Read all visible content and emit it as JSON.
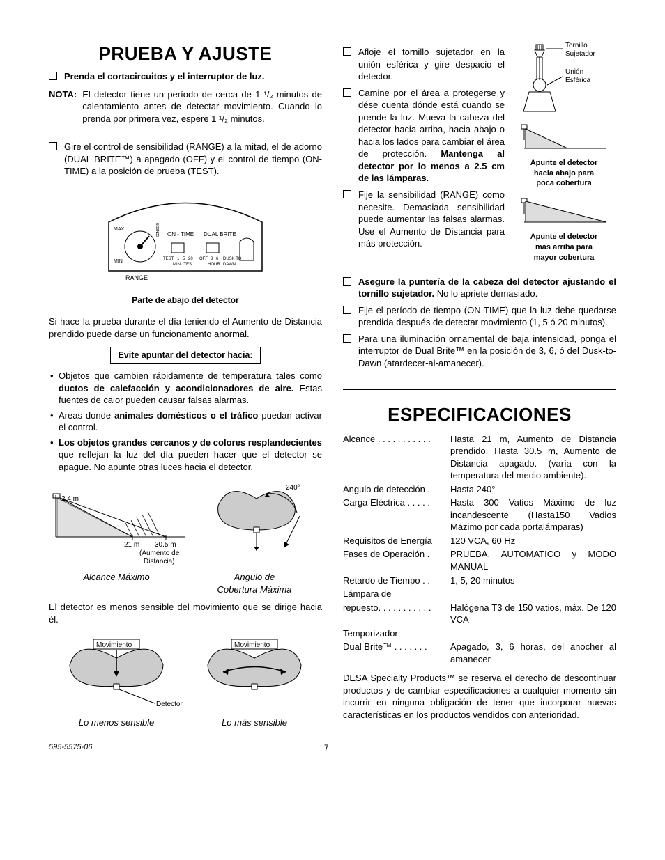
{
  "left": {
    "title": "PRUEBA Y AJUSTE",
    "step1": "Prenda el cortacircuitos y el interruptor de luz.",
    "nota_label": "NOTA:",
    "nota_text": "El detector tiene un período de cerca de 1 ¹/₂ minutos de calentamiento antes de detectar movimiento. Cuando lo prenda por primera vez, espere 1 ¹/₂ minutos.",
    "step2": "Gire el control de sensibilidad (RANGE) a la mitad, el de adorno (DUAL BRITE™) a apagado (OFF) y el control de tiempo (ON-TIME) a la posición de prueba (TEST).",
    "fig1": {
      "max": "MAX",
      "min": "MIN",
      "range": "RANGE",
      "ontime": "ON - TIME",
      "dualbrite": "DUAL BRITE",
      "test": "TEST",
      "min_m": "MINUTES",
      "one": "1",
      "five": "5",
      "twenty": "20",
      "off": "OFF",
      "three": "3",
      "six": "6",
      "hour": "HOUR",
      "dusk": "DUSK TO",
      "dawn": "DAWN",
      "sensor": "SENSOR",
      "caption": "Parte de abajo del detector"
    },
    "para1": "Si hace la prueba durante el día teniendo el Aumento de Distancia prendido puede darse un funcionamento anormal.",
    "avoid_title": "Evite apuntar del detector hacia:",
    "bullet1a": "Objetos que cambien rápidamente de temperatura tales como ",
    "bullet1b": "ductos de calefacción y acondicionadores de aire.",
    "bullet1c": " Estas fuentes de calor pueden causar falsas alarmas.",
    "bullet2a": "Areas donde ",
    "bullet2b": "animales domésticos o el tráfico",
    "bullet2c": " puedan activar el control.",
    "bullet3a": "Los objetos grandes cercanos y de colores resplandecientes",
    "bullet3b": " que reflejan la luz del día pueden hacer que el detector se apague. No apunte otras luces hacia el detector.",
    "fig2": {
      "h": "2.4 m",
      "d1": "21 m",
      "d2": "30.5 m",
      "aum1": "(Aumento de",
      "aum2": "Distancia)",
      "cap_l": "Alcance Máximo",
      "deg": "240°",
      "cap_r1": "Angulo de",
      "cap_r2": "Cobertura Máxima"
    },
    "para2": "El detector es menos sensible del movimiento que se dirige hacia él.",
    "fig3": {
      "mov": "Movimiento",
      "det": "Detector",
      "cap_l": "Lo menos sensible",
      "cap_r": "Lo más sensible"
    }
  },
  "right": {
    "step1": "Afloje el tornillo sujetador en la unión esférica y gire despacio el detector.",
    "step2a": "Camine por el área a protegerse y dése cuenta dónde está cuando se prende la luz. Mueva la cabeza del detector hacia arriba, hacia abajo o hacia los lados para cambiar el área de protección. ",
    "step2b": "Mantenga al detector por lo menos a 2.5 cm de las lámparas.",
    "step3": "Fije la sensibilidad (RANGE) como necesite. Demasiada sensibilidad puede aumentar las falsas alarmas. Use el Aumento de Distancia para más protección.",
    "fig_labels": {
      "tornillo": "Tornillo",
      "sujetador": "Sujetador",
      "union": "Unión",
      "esferica": "Esférica",
      "cap1a": "Apunte el detector",
      "cap1b": "hacia abajo para",
      "cap1c": "poca cobertura",
      "cap2a": "Apunte el detector",
      "cap2b": "más arriba para",
      "cap2c": "mayor cobertura"
    },
    "step4a": "Asegure la puntería de la cabeza del detector ajustando el tornillo sujetador.",
    "step4b": " No lo apriete demasiado.",
    "step5": "Fije el período de tiempo (ON-TIME) que la luz debe quedarse prendida después de detectar movimiento (1, 5 ó 20 minutos).",
    "step6": "Para una iluminación ornamental de baja intensidad, ponga el interruptor de Dual Brite™ en la posición de 3, 6, ó del Dusk-to-Dawn (atardecer-al-amanecer).",
    "spec_title": "ESPECIFICACIONES",
    "specs": [
      {
        "label": "Alcance . . . . . . . . . . .",
        "val": "Hasta 21 m, Aumento de Distancia prendido. Hasta 30.5 m, Aumento de Distancia apagado. (varía con la temperatura del medio ambiente)."
      },
      {
        "label": "Angulo de detección .",
        "val": "Hasta 240°"
      },
      {
        "label": "Carga Eléctrica . . . . .",
        "val": "Hasta 300 Vatios Máximo de luz incandescente (Hasta150 Vadios Mázimo por cada portalámparas)"
      },
      {
        "label": "Requisitos de Energía",
        "val": "120 VCA, 60 Hz"
      },
      {
        "label": "Fases de Operación .",
        "val": "PRUEBA, AUTOMATICO y MODO MANUAL"
      },
      {
        "label": "Retardo de Tiempo . .",
        "val": "1, 5, 20 minutos"
      },
      {
        "label": "Lámpara de",
        "val": ""
      },
      {
        "label": "repuesto. . . . . . . . . . .",
        "val": "Halógena T3 de 150 vatios, máx. De 120 VCA"
      },
      {
        "label": "Temporizador",
        "val": ""
      },
      {
        "label": "Dual Brite™  . . . . . . .",
        "val": "Apagado, 3, 6 horas, del anocher al amanecer"
      }
    ],
    "disclaimer": "DESA Specialty Products™ se reserva el derecho de descontinuar productos y de cambiar especificaciones a cualquier momento sin incurrir en ninguna obligación de tener que incorporar nuevas características en los productos vendidos con anterioridad."
  },
  "footer": {
    "doc": "595-5575-06",
    "page": "7"
  }
}
